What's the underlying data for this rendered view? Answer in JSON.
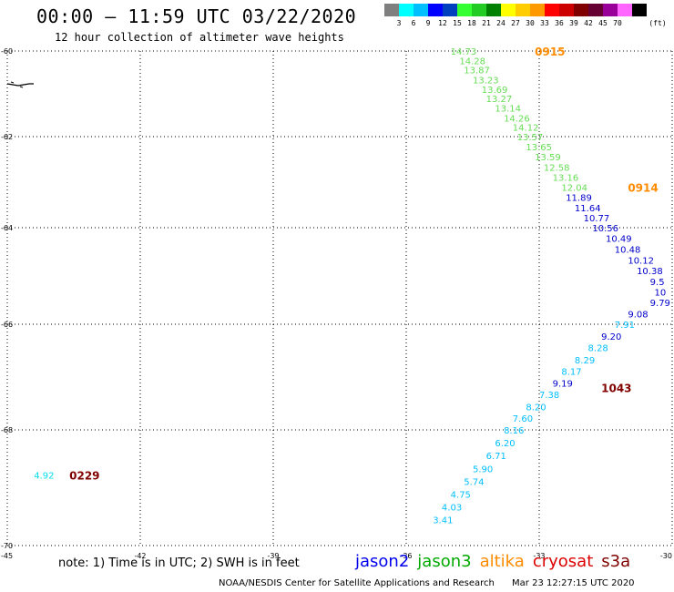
{
  "header": {
    "title": "00:00 – 11:59 UTC 03/22/2020",
    "subtitle": "12 hour collection of altimeter wave heights"
  },
  "legend": {
    "colors": [
      "#7f7f7f",
      "#00ffff",
      "#00bfff",
      "#0000ff",
      "#0040bf",
      "#33ff33",
      "#22cc22",
      "#008000",
      "#ffff00",
      "#ffcc00",
      "#ff9900",
      "#ff0000",
      "#cc0000",
      "#800000",
      "#660033",
      "#990099",
      "#ff66ff",
      "#000000"
    ],
    "labels": [
      "3",
      "6",
      "9",
      "12",
      "15",
      "18",
      "21",
      "24",
      "27",
      "30",
      "33",
      "36",
      "39",
      "42",
      "45",
      "70"
    ],
    "unit": "(ft)"
  },
  "map": {
    "lon_ticks": [
      "-45",
      "-42",
      "-39",
      "-36",
      "-33",
      "-30"
    ],
    "lat_ticks": [
      "-60",
      "-62",
      "-64",
      "-66",
      "-68",
      "-70"
    ],
    "lon_range": [
      -45,
      -30
    ],
    "lat_range": [
      -60,
      -70
    ],
    "grid": "dotted"
  },
  "tracks": [
    {
      "satellite": "jason3",
      "time": "0915",
      "time_color": "#ff8c00",
      "time_at": [
        -33.1,
        -60.0
      ],
      "points": [
        {
          "lon": -35.0,
          "lat": -60.0,
          "v": "14.73",
          "c": "#66dd55"
        },
        {
          "lon": -34.8,
          "lat": -60.22,
          "v": "14.28",
          "c": "#66dd55"
        },
        {
          "lon": -34.7,
          "lat": -60.44,
          "v": "13.87",
          "c": "#66dd55"
        },
        {
          "lon": -34.5,
          "lat": -60.67,
          "v": "13.23",
          "c": "#66dd55"
        },
        {
          "lon": -34.3,
          "lat": -60.89,
          "v": "13.69",
          "c": "#66dd55"
        },
        {
          "lon": -34.2,
          "lat": -61.11,
          "v": "13.27",
          "c": "#66dd55"
        },
        {
          "lon": -34.0,
          "lat": -61.33,
          "v": "13.14",
          "c": "#66dd55"
        },
        {
          "lon": -33.8,
          "lat": -61.56,
          "v": "14.26",
          "c": "#66dd55"
        },
        {
          "lon": -33.6,
          "lat": -61.78,
          "v": "14.12",
          "c": "#66dd55"
        },
        {
          "lon": -33.5,
          "lat": -62.0,
          "v": "13.57",
          "c": "#66dd55"
        },
        {
          "lon": -33.3,
          "lat": -62.22,
          "v": "13.65",
          "c": "#66dd55"
        },
        {
          "lon": -33.1,
          "lat": -62.44,
          "v": "13.59",
          "c": "#66dd55"
        },
        {
          "lon": -32.9,
          "lat": -62.67,
          "v": "12.58",
          "c": "#66dd55"
        },
        {
          "lon": -32.7,
          "lat": -62.89,
          "v": "13.16",
          "c": "#66dd55"
        },
        {
          "lon": -32.5,
          "lat": -63.11,
          "v": "12.04",
          "c": "#66dd55"
        }
      ]
    },
    {
      "satellite": "jason3",
      "time": "0914",
      "time_color": "#ff8c00",
      "time_at": [
        -31.0,
        -63.11
      ],
      "points": [
        {
          "lon": -32.4,
          "lat": -63.33,
          "v": "11.89",
          "c": "#0000cc"
        },
        {
          "lon": -32.2,
          "lat": -63.56,
          "v": "11.64",
          "c": "#0000cc"
        },
        {
          "lon": -32.0,
          "lat": -63.78,
          "v": "10.77",
          "c": "#0000cc"
        },
        {
          "lon": -31.8,
          "lat": -64.0,
          "v": "10.56",
          "c": "#0000cc"
        },
        {
          "lon": -31.5,
          "lat": -64.22,
          "v": "10.49",
          "c": "#0000cc"
        },
        {
          "lon": -31.3,
          "lat": -64.44,
          "v": "10.48",
          "c": "#0000cc"
        },
        {
          "lon": -31.0,
          "lat": -64.67,
          "v": "10.12",
          "c": "#0000cc"
        },
        {
          "lon": -30.8,
          "lat": -64.89,
          "v": "10.38",
          "c": "#0000cc"
        },
        {
          "lon": -30.5,
          "lat": -65.11,
          "v": "9.5",
          "c": "#0000cc"
        },
        {
          "lon": -30.4,
          "lat": -65.33,
          "v": "10",
          "c": "#0000cc"
        },
        {
          "lon": -30.5,
          "lat": -65.55,
          "v": "9.79",
          "c": "#0000cc"
        }
      ]
    },
    {
      "satellite": "cryosat",
      "time": "1043",
      "time_color": "#800000",
      "time_at": [
        -31.6,
        -67.2
      ],
      "points": [
        {
          "lon": -31.0,
          "lat": -65.78,
          "v": "9.08",
          "c": "#0000cc"
        },
        {
          "lon": -31.3,
          "lat": -66.0,
          "v": "7.91",
          "c": "#00bfff"
        },
        {
          "lon": -31.6,
          "lat": -66.22,
          "v": "9.20",
          "c": "#0000cc"
        },
        {
          "lon": -31.9,
          "lat": -66.44,
          "v": "8.28",
          "c": "#00bfff"
        },
        {
          "lon": -32.2,
          "lat": -66.67,
          "v": "8.29",
          "c": "#00bfff"
        },
        {
          "lon": -32.5,
          "lat": -66.89,
          "v": "8.17",
          "c": "#00bfff"
        },
        {
          "lon": -32.7,
          "lat": -67.11,
          "v": "9.19",
          "c": "#0000cc"
        },
        {
          "lon": -33.0,
          "lat": -67.33,
          "v": "7.38",
          "c": "#00bfff"
        },
        {
          "lon": -33.3,
          "lat": -67.56,
          "v": "8.20",
          "c": "#00bfff"
        },
        {
          "lon": -33.6,
          "lat": -67.78,
          "v": "7.60",
          "c": "#00bfff"
        },
        {
          "lon": -33.8,
          "lat": -68.0,
          "v": "8.16",
          "c": "#00bfff"
        },
        {
          "lon": -34.0,
          "lat": -68.22,
          "v": "6.20",
          "c": "#00bfff"
        },
        {
          "lon": -34.2,
          "lat": -68.44,
          "v": "6.71",
          "c": "#00bfff"
        },
        {
          "lon": -34.5,
          "lat": -68.67,
          "v": "5.90",
          "c": "#00bfff"
        },
        {
          "lon": -34.7,
          "lat": -68.89,
          "v": "5.74",
          "c": "#00bfff"
        },
        {
          "lon": -35.0,
          "lat": -69.11,
          "v": "4.75",
          "c": "#00bfff"
        },
        {
          "lon": -35.2,
          "lat": -69.33,
          "v": "4.03",
          "c": "#00bfff"
        },
        {
          "lon": -35.4,
          "lat": -69.55,
          "v": "3.41",
          "c": "#00bfff"
        }
      ]
    },
    {
      "satellite": "cryosat",
      "time": "0229",
      "time_color": "#800000",
      "time_at": [
        -43.6,
        -68.78
      ],
      "points": [
        {
          "lon": -44.4,
          "lat": -68.78,
          "v": "4.92",
          "c": "#00ddee"
        }
      ]
    }
  ],
  "footer": {
    "note": "note: 1) Time is in UTC; 2) SWH is in feet",
    "satellites": [
      {
        "name": "jason2",
        "color": "#0000ee"
      },
      {
        "name": "jason3",
        "color": "#00aa00"
      },
      {
        "name": "altika",
        "color": "#ff8c00"
      },
      {
        "name": "cryosat",
        "color": "#dd0000"
      },
      {
        "name": "s3a",
        "color": "#800000"
      }
    ],
    "credit": "NOAA/NESDIS Center for Satellite Applications and Research",
    "timestamp": "Mar 23 12:27:15 UTC 2020"
  }
}
